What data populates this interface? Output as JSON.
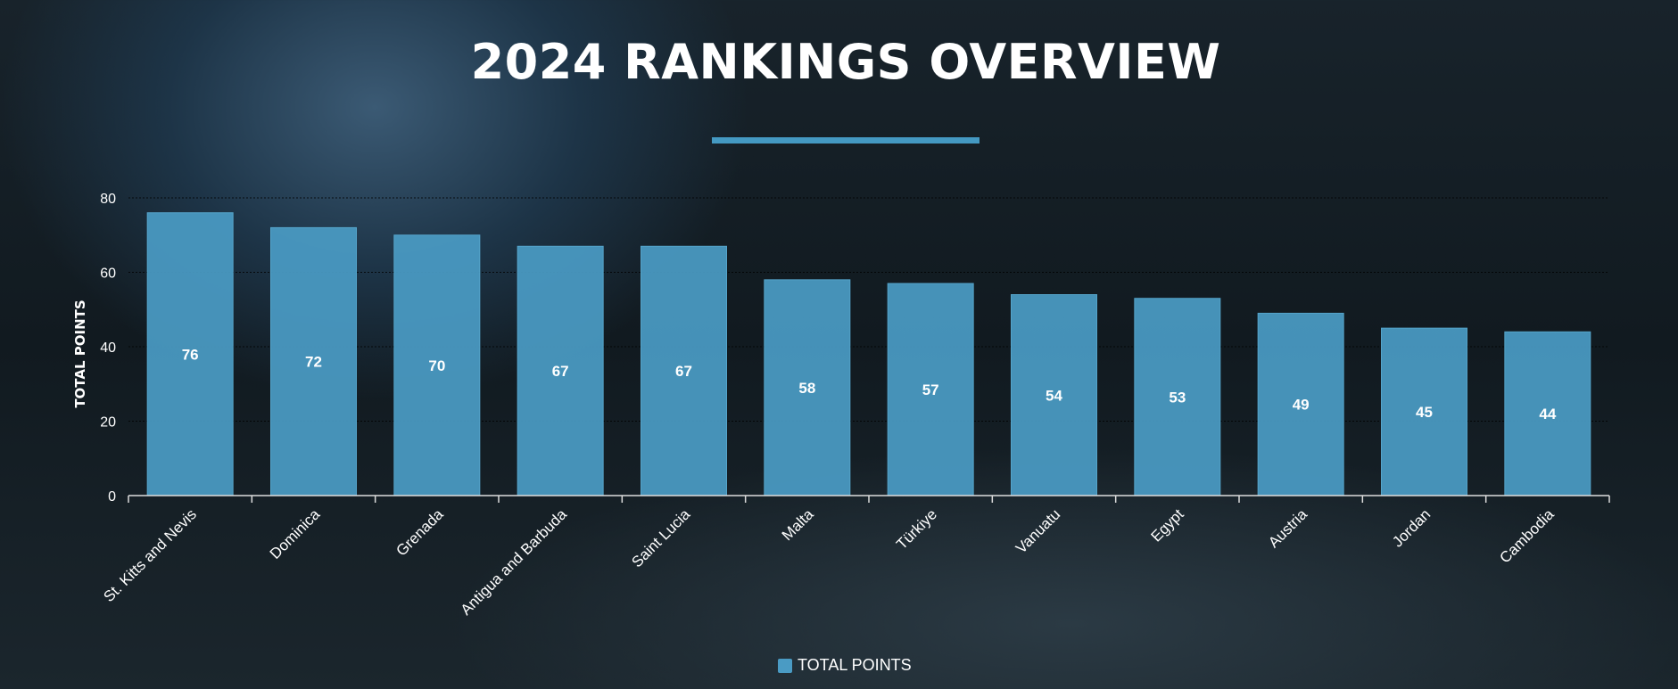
{
  "title": "2024 RANKINGS OVERVIEW",
  "colors": {
    "bar": "#4a9bc4",
    "accent": "#4499c2"
  },
  "chart_data": {
    "type": "bar",
    "title": "2024 RANKINGS OVERVIEW",
    "xlabel": "",
    "ylabel": "TOTAL POINTS",
    "ylim": [
      0,
      80
    ],
    "yticks": [
      0,
      20,
      40,
      60,
      80
    ],
    "grid": true,
    "legend": {
      "position": "bottom",
      "entries": [
        "TOTAL POINTS"
      ]
    },
    "categories": [
      "St. Kitts and Nevis",
      "Dominica",
      "Grenada",
      "Antigua and Barbuda",
      "Saint Lucia",
      "Malta",
      "Türkiye",
      "Vanuatu",
      "Egypt",
      "Austria",
      "Jordan",
      "Cambodia"
    ],
    "series": [
      {
        "name": "TOTAL POINTS",
        "values": [
          76,
          72,
          70,
          67,
          67,
          58,
          57,
          54,
          53,
          49,
          45,
          44
        ]
      }
    ]
  }
}
